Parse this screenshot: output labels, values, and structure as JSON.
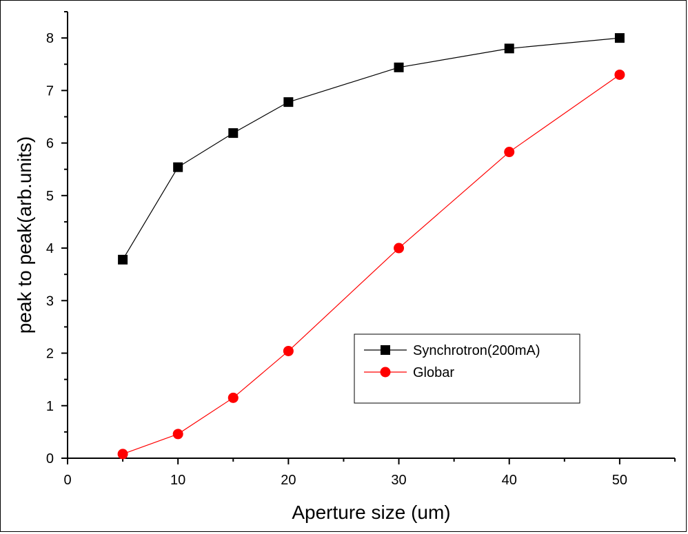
{
  "chart_data": {
    "type": "line",
    "xlabel": "Aperture size (um)",
    "ylabel": "peak to peak(arb.units)",
    "xlim": [
      0,
      55
    ],
    "ylim": [
      0,
      8.5
    ],
    "xticks": [
      0,
      10,
      20,
      30,
      40,
      50
    ],
    "yticks": [
      0,
      1,
      2,
      3,
      4,
      5,
      6,
      7,
      8
    ],
    "x": [
      5,
      10,
      15,
      20,
      30,
      40,
      50
    ],
    "series": [
      {
        "name": "Synchrotron(200mA)",
        "marker": "square",
        "color": "#000000",
        "values": [
          3.78,
          5.54,
          6.19,
          6.78,
          7.44,
          7.8,
          8.0
        ]
      },
      {
        "name": "Globar",
        "marker": "circle",
        "color": "#ff0000",
        "values": [
          0.08,
          0.46,
          1.15,
          2.04,
          4.0,
          5.83,
          7.3
        ]
      }
    ],
    "grid": false,
    "legend_position": "lower-right"
  }
}
